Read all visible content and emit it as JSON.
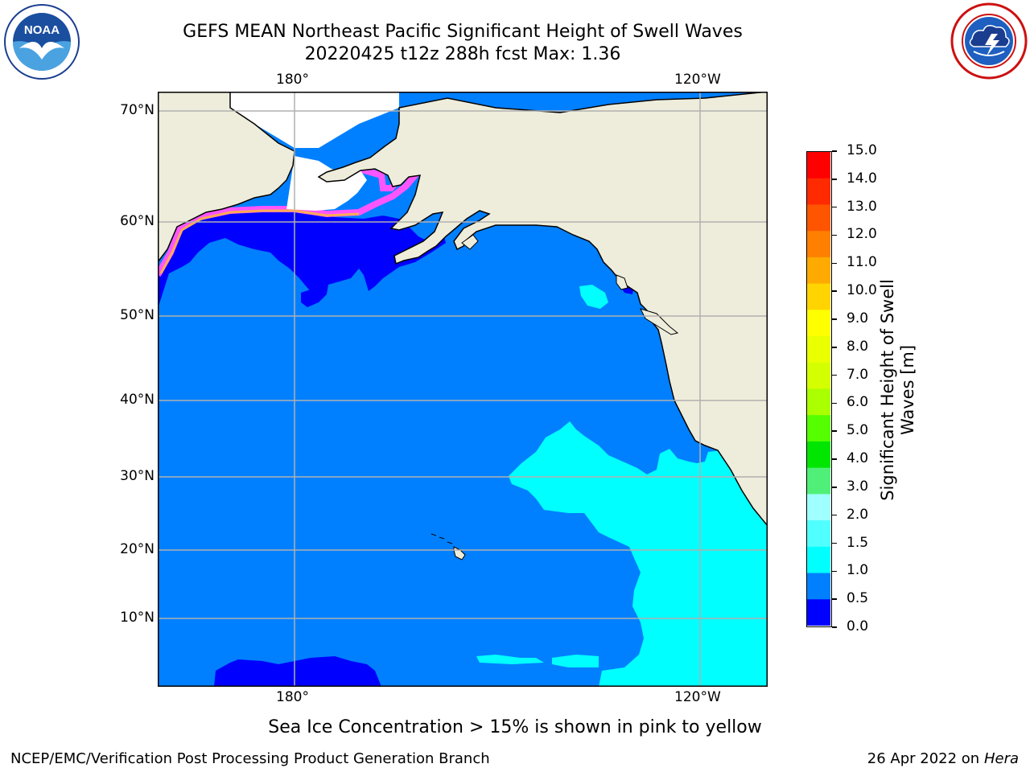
{
  "title_line1": "GEFS MEAN Northeast Pacific Significant Height of Swell Waves",
  "title_line2": "20220425 t12z 288h fcst   Max: 1.36",
  "lon_labels": [
    "180°",
    "120°W"
  ],
  "lat_labels": [
    "70°N",
    "60°N",
    "50°N",
    "40°N",
    "30°N",
    "20°N",
    "10°N"
  ],
  "colorbar": {
    "label": "Significant Height of Swell Waves [m]",
    "label_line1": "Significant Height of Swell",
    "label_line2": "Waves [m]",
    "ticks": [
      "15.0",
      "14.0",
      "13.0",
      "12.0",
      "11.0",
      "10.0",
      "9.0",
      "8.0",
      "7.0",
      "6.0",
      "5.0",
      "4.0",
      "3.0",
      "2.0",
      "1.5",
      "1.0",
      "0.5",
      "0.0"
    ],
    "colors": [
      "#ff0000",
      "#ff2a00",
      "#ff5500",
      "#ff7f00",
      "#ffaa00",
      "#ffd400",
      "#ffff00",
      "#eaff00",
      "#d4ff00",
      "#aaff00",
      "#55ff00",
      "#00e600",
      "#50f078",
      "#a0ffff",
      "#50ffff",
      "#00ffff",
      "#0080ff",
      "#0000ff"
    ]
  },
  "note": "Sea Ice Concentration > 15% is shown in pink to yellow",
  "footer_left": "NCEP/EMC/Verification Post Processing Product Generation Branch",
  "footer_date": "26 Apr 2022 on ",
  "footer_machine": "Hera",
  "logos": {
    "left": {
      "text": "NOAA",
      "ring_text": "NATIONAL OCEANIC AND ATMOSPHERIC ADMINISTRATION · U.S. DEPARTMENT OF COMMERCE"
    },
    "right": {
      "ring_text": "NATIONAL WEATHER SERVICE"
    }
  },
  "palette": {
    "ocean_dark": "#0000ff",
    "ocean_mid": "#0080ff",
    "ocean_light": "#00ffff",
    "ocean_pale": "#50ffff",
    "land": "#eeeddb",
    "ice_pink": "#ff55ff",
    "ice_orange": "#ffaa55",
    "grid": "#b0b0b0"
  }
}
